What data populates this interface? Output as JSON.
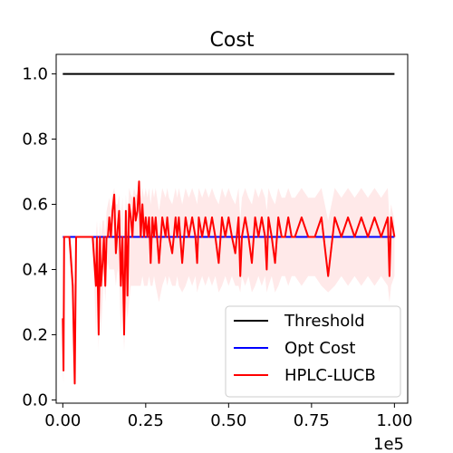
{
  "chart_data": {
    "type": "line",
    "title": "Cost",
    "xlabel": "",
    "ylabel": "",
    "x_offset_label": "1e5",
    "xlim": [
      -0.02,
      1.04
    ],
    "ylim": [
      -0.01,
      1.06
    ],
    "x_ticks": [
      {
        "value": 0.0,
        "label": "0.00"
      },
      {
        "value": 0.25,
        "label": "0.25"
      },
      {
        "value": 0.5,
        "label": "0.50"
      },
      {
        "value": 0.75,
        "label": "0.75"
      },
      {
        "value": 1.0,
        "label": "1.00"
      }
    ],
    "y_ticks": [
      {
        "value": 0.0,
        "label": "0.0"
      },
      {
        "value": 0.2,
        "label": "0.2"
      },
      {
        "value": 0.4,
        "label": "0.4"
      },
      {
        "value": 0.6,
        "label": "0.6"
      },
      {
        "value": 0.8,
        "label": "0.8"
      },
      {
        "value": 1.0,
        "label": "1.0"
      }
    ],
    "grid": false,
    "legend_position": "bottom-right",
    "series": [
      {
        "name": "Threshold",
        "color": "#000000",
        "x": [
          0.0,
          1.0
        ],
        "y": [
          1.0,
          1.0
        ]
      },
      {
        "name": "Opt Cost",
        "color": "#0000ff",
        "x": [
          0.0,
          1.0
        ],
        "y": [
          0.5,
          0.5
        ]
      },
      {
        "name": "HPLC-LUCB",
        "color": "#ff0000",
        "band_color": "#ff9999",
        "x": [
          0.0,
          0.002,
          0.004,
          0.008,
          0.012,
          0.02,
          0.03,
          0.036,
          0.04,
          0.045,
          0.05,
          0.06,
          0.075,
          0.09,
          0.1,
          0.103,
          0.108,
          0.112,
          0.115,
          0.12,
          0.124,
          0.128,
          0.132,
          0.136,
          0.14,
          0.145,
          0.15,
          0.155,
          0.16,
          0.165,
          0.17,
          0.175,
          0.18,
          0.185,
          0.19,
          0.195,
          0.2,
          0.205,
          0.21,
          0.215,
          0.22,
          0.225,
          0.23,
          0.235,
          0.24,
          0.245,
          0.25,
          0.255,
          0.26,
          0.265,
          0.27,
          0.275,
          0.28,
          0.29,
          0.3,
          0.31,
          0.315,
          0.32,
          0.33,
          0.34,
          0.345,
          0.35,
          0.36,
          0.37,
          0.38,
          0.39,
          0.4,
          0.405,
          0.41,
          0.42,
          0.43,
          0.44,
          0.45,
          0.46,
          0.47,
          0.48,
          0.49,
          0.5,
          0.51,
          0.52,
          0.53,
          0.535,
          0.54,
          0.55,
          0.56,
          0.57,
          0.58,
          0.59,
          0.6,
          0.61,
          0.615,
          0.62,
          0.63,
          0.64,
          0.65,
          0.66,
          0.67,
          0.68,
          0.69,
          0.7,
          0.72,
          0.74,
          0.76,
          0.78,
          0.8,
          0.82,
          0.84,
          0.86,
          0.88,
          0.9,
          0.92,
          0.94,
          0.96,
          0.98,
          0.985,
          0.99,
          1.0
        ],
        "y": [
          0.25,
          0.09,
          0.5,
          0.5,
          0.5,
          0.5,
          0.35,
          0.05,
          0.5,
          0.5,
          0.5,
          0.5,
          0.5,
          0.5,
          0.35,
          0.5,
          0.2,
          0.5,
          0.35,
          0.42,
          0.5,
          0.35,
          0.5,
          0.5,
          0.56,
          0.5,
          0.58,
          0.63,
          0.45,
          0.52,
          0.58,
          0.35,
          0.5,
          0.2,
          0.58,
          0.32,
          0.6,
          0.56,
          0.5,
          0.62,
          0.55,
          0.58,
          0.67,
          0.5,
          0.6,
          0.5,
          0.56,
          0.5,
          0.56,
          0.42,
          0.56,
          0.5,
          0.56,
          0.42,
          0.56,
          0.5,
          0.56,
          0.5,
          0.45,
          0.56,
          0.5,
          0.56,
          0.42,
          0.56,
          0.5,
          0.56,
          0.5,
          0.42,
          0.56,
          0.5,
          0.56,
          0.5,
          0.56,
          0.5,
          0.42,
          0.56,
          0.5,
          0.56,
          0.5,
          0.45,
          0.56,
          0.38,
          0.5,
          0.56,
          0.5,
          0.42,
          0.56,
          0.5,
          0.56,
          0.5,
          0.4,
          0.56,
          0.5,
          0.42,
          0.56,
          0.5,
          0.5,
          0.56,
          0.5,
          0.5,
          0.56,
          0.5,
          0.5,
          0.56,
          0.38,
          0.56,
          0.5,
          0.56,
          0.5,
          0.56,
          0.5,
          0.56,
          0.5,
          0.56,
          0.38,
          0.56,
          0.5
        ],
        "band_low": [
          0.1,
          0.05,
          0.5,
          0.5,
          0.5,
          0.5,
          0.25,
          0.05,
          0.5,
          0.5,
          0.5,
          0.5,
          0.5,
          0.5,
          0.2,
          0.4,
          0.15,
          0.4,
          0.2,
          0.3,
          0.4,
          0.3,
          0.4,
          0.42,
          0.4,
          0.4,
          0.4,
          0.4,
          0.35,
          0.4,
          0.38,
          0.2,
          0.3,
          0.15,
          0.3,
          0.25,
          0.3,
          0.35,
          0.35,
          0.35,
          0.35,
          0.35,
          0.35,
          0.35,
          0.38,
          0.35,
          0.35,
          0.35,
          0.38,
          0.35,
          0.35,
          0.38,
          0.35,
          0.3,
          0.35,
          0.38,
          0.35,
          0.38,
          0.35,
          0.35,
          0.38,
          0.35,
          0.33,
          0.35,
          0.38,
          0.35,
          0.38,
          0.33,
          0.35,
          0.38,
          0.35,
          0.38,
          0.35,
          0.38,
          0.33,
          0.35,
          0.38,
          0.35,
          0.38,
          0.35,
          0.35,
          0.33,
          0.38,
          0.35,
          0.38,
          0.33,
          0.35,
          0.38,
          0.35,
          0.38,
          0.33,
          0.35,
          0.38,
          0.33,
          0.35,
          0.38,
          0.38,
          0.35,
          0.38,
          0.38,
          0.35,
          0.38,
          0.38,
          0.35,
          0.33,
          0.35,
          0.38,
          0.35,
          0.38,
          0.35,
          0.38,
          0.35,
          0.38,
          0.35,
          0.3,
          0.35,
          0.38
        ],
        "band_high": [
          0.3,
          0.15,
          0.5,
          0.5,
          0.5,
          0.5,
          0.45,
          0.1,
          0.5,
          0.5,
          0.5,
          0.5,
          0.5,
          0.5,
          0.5,
          0.55,
          0.45,
          0.55,
          0.5,
          0.55,
          0.55,
          0.5,
          0.58,
          0.6,
          0.62,
          0.58,
          0.63,
          0.65,
          0.6,
          0.6,
          0.63,
          0.55,
          0.62,
          0.4,
          0.63,
          0.55,
          0.65,
          0.63,
          0.62,
          0.65,
          0.63,
          0.63,
          0.67,
          0.62,
          0.65,
          0.62,
          0.65,
          0.62,
          0.65,
          0.6,
          0.65,
          0.62,
          0.65,
          0.58,
          0.65,
          0.62,
          0.65,
          0.62,
          0.6,
          0.65,
          0.62,
          0.65,
          0.6,
          0.65,
          0.62,
          0.65,
          0.62,
          0.6,
          0.65,
          0.62,
          0.65,
          0.62,
          0.65,
          0.62,
          0.6,
          0.65,
          0.62,
          0.65,
          0.62,
          0.6,
          0.65,
          0.55,
          0.62,
          0.65,
          0.62,
          0.6,
          0.65,
          0.62,
          0.65,
          0.62,
          0.58,
          0.65,
          0.62,
          0.6,
          0.65,
          0.62,
          0.62,
          0.65,
          0.62,
          0.62,
          0.65,
          0.62,
          0.62,
          0.65,
          0.55,
          0.65,
          0.62,
          0.65,
          0.62,
          0.65,
          0.62,
          0.65,
          0.62,
          0.65,
          0.55,
          0.6,
          0.55
        ]
      }
    ]
  }
}
